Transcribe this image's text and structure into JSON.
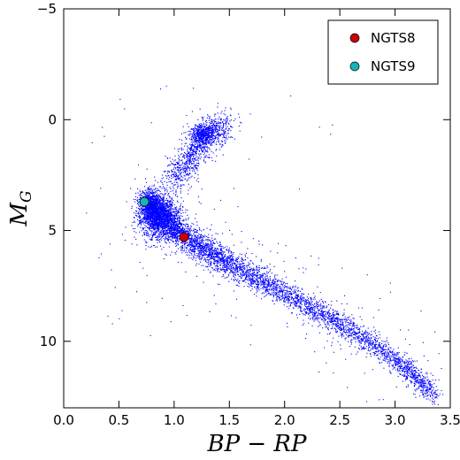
{
  "chart_data": {
    "type": "scatter",
    "title": "",
    "xlabel": "BP − RP",
    "ylabel_main": "M",
    "ylabel_sub": "G",
    "xlim": [
      0.0,
      3.5
    ],
    "ylim": [
      13.0,
      -5.0
    ],
    "y_inverted": true,
    "xticks": [
      0.0,
      0.5,
      1.0,
      1.5,
      2.0,
      2.5,
      3.0,
      3.5
    ],
    "xtick_labels": [
      "0.0",
      "0.5",
      "1.0",
      "1.5",
      "2.0",
      "2.5",
      "3.0",
      "3.5"
    ],
    "yticks": [
      -5,
      0,
      5,
      10
    ],
    "ytick_labels": [
      "−5",
      "0",
      "5",
      "10"
    ],
    "grid": false,
    "legend_position": "top-right",
    "background_population": {
      "color": "#0000ff",
      "description_points": [
        {
          "x": 0.75,
          "y": 3.8
        },
        {
          "x": 1.1,
          "y": 5.3
        },
        {
          "x": 1.5,
          "y": 6.5
        },
        {
          "x": 2.0,
          "y": 7.8
        },
        {
          "x": 2.5,
          "y": 9.2
        },
        {
          "x": 3.0,
          "y": 10.8
        },
        {
          "x": 3.35,
          "y": 12.4
        },
        {
          "x": 1.0,
          "y": 2.8
        },
        {
          "x": 1.15,
          "y": 1.6
        },
        {
          "x": 1.3,
          "y": 0.7
        },
        {
          "x": 1.45,
          "y": 0.1
        }
      ]
    },
    "series": [
      {
        "name": "NGTS8",
        "color": "#cc0000",
        "x": [
          1.09
        ],
        "y": [
          5.3
        ]
      },
      {
        "name": "NGTS9",
        "color": "#1ab4b4",
        "x": [
          0.73
        ],
        "y": [
          3.7
        ]
      }
    ]
  }
}
